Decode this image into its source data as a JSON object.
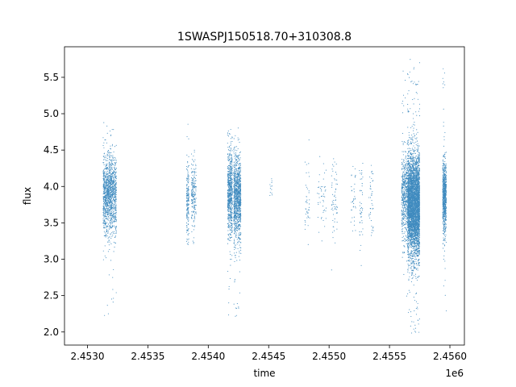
{
  "chart_data": {
    "type": "scatter",
    "title": "1SWASPJ150518.70+310308.8",
    "xlabel": "time",
    "ylabel": "flux",
    "x_offset_label": "1e6",
    "xlim": [
      2.45281,
      2.45612
    ],
    "ylim": [
      1.82,
      5.92
    ],
    "x_ticks": [
      2.453,
      2.4535,
      2.454,
      2.4545,
      2.455,
      2.4555,
      2.456
    ],
    "x_tick_labels": [
      "2.4530",
      "2.4535",
      "2.4540",
      "2.4545",
      "2.4550",
      "2.4555",
      "2.4560"
    ],
    "y_ticks": [
      2.0,
      2.5,
      3.0,
      3.5,
      4.0,
      4.5,
      5.0,
      5.5
    ],
    "y_tick_labels": [
      "2.0",
      "2.5",
      "3.0",
      "3.5",
      "4.0",
      "4.5",
      "5.0",
      "5.5"
    ],
    "grid": false,
    "marker_color": "#1f77b4",
    "clusters": [
      {
        "x_start": 2.45313,
        "x_end": 2.45324,
        "y_center": 3.9,
        "y_spread": 0.38,
        "n": 1300,
        "y_min": 2.2,
        "y_max": 5.05
      },
      {
        "x_start": 2.45382,
        "x_end": 2.45384,
        "y_center": 3.8,
        "y_spread": 0.35,
        "n": 180,
        "y_min": 3.2,
        "y_max": 5.0
      },
      {
        "x_start": 2.45386,
        "x_end": 2.4539,
        "y_center": 3.9,
        "y_spread": 0.3,
        "n": 200,
        "y_min": 3.0,
        "y_max": 4.5
      },
      {
        "x_start": 2.45416,
        "x_end": 2.4542,
        "y_center": 3.9,
        "y_spread": 0.4,
        "n": 700,
        "y_min": 2.2,
        "y_max": 5.05
      },
      {
        "x_start": 2.45421,
        "x_end": 2.45427,
        "y_center": 3.85,
        "y_spread": 0.38,
        "n": 1100,
        "y_min": 2.05,
        "y_max": 4.85
      },
      {
        "x_start": 2.45451,
        "x_end": 2.45453,
        "y_center": 3.95,
        "y_spread": 0.25,
        "n": 12,
        "y_min": 3.6,
        "y_max": 4.25
      },
      {
        "x_start": 2.4548,
        "x_end": 2.45484,
        "y_center": 3.8,
        "y_spread": 0.35,
        "n": 40,
        "y_min": 2.95,
        "y_max": 4.7
      },
      {
        "x_start": 2.4549,
        "x_end": 2.45498,
        "y_center": 3.8,
        "y_spread": 0.3,
        "n": 45,
        "y_min": 3.2,
        "y_max": 4.5
      },
      {
        "x_start": 2.45502,
        "x_end": 2.45507,
        "y_center": 3.8,
        "y_spread": 0.35,
        "n": 60,
        "y_min": 2.75,
        "y_max": 4.5
      },
      {
        "x_start": 2.45518,
        "x_end": 2.45522,
        "y_center": 3.8,
        "y_spread": 0.3,
        "n": 35,
        "y_min": 3.0,
        "y_max": 4.3
      },
      {
        "x_start": 2.45525,
        "x_end": 2.45528,
        "y_center": 3.8,
        "y_spread": 0.4,
        "n": 45,
        "y_min": 2.65,
        "y_max": 4.65
      },
      {
        "x_start": 2.45533,
        "x_end": 2.45537,
        "y_center": 3.8,
        "y_spread": 0.35,
        "n": 40,
        "y_min": 3.3,
        "y_max": 4.5
      },
      {
        "x_start": 2.4556,
        "x_end": 2.45565,
        "y_center": 3.85,
        "y_spread": 0.4,
        "n": 500,
        "y_min": 2.45,
        "y_max": 5.6
      },
      {
        "x_start": 2.45565,
        "x_end": 2.45575,
        "y_center": 3.75,
        "y_spread": 0.45,
        "n": 4500,
        "y_min": 1.98,
        "y_max": 5.75
      },
      {
        "x_start": 2.45594,
        "x_end": 2.45597,
        "y_center": 3.85,
        "y_spread": 0.32,
        "n": 800,
        "y_min": 2.0,
        "y_max": 5.65
      }
    ]
  }
}
